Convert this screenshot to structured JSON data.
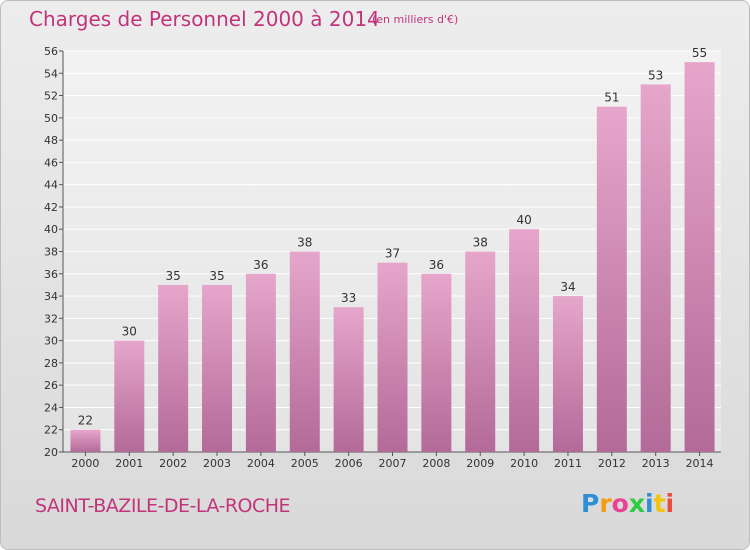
{
  "header": {
    "title": "Charges de Personnel 2000 à 2014",
    "subtitle": "(en milliers d'€)"
  },
  "footer": {
    "commune": "SAINT-BAZILE-DE-LA-ROCHE",
    "logo_letters": [
      {
        "ch": "P",
        "color": "#2f8fd6"
      },
      {
        "ch": "r",
        "color": "#f39c12"
      },
      {
        "ch": "o",
        "color": "#e84393"
      },
      {
        "ch": "x",
        "color": "#2ecc40"
      },
      {
        "ch": "i",
        "color": "#2f8fd6"
      },
      {
        "ch": "t",
        "color": "#f1c40f"
      },
      {
        "ch": "i",
        "color": "#e74c3c"
      }
    ]
  },
  "colors": {
    "bar_top": "#e6a6cb",
    "bar_bottom": "#b36a98",
    "accent": "#c2347a"
  },
  "chart_data": {
    "type": "bar",
    "title": "Charges de Personnel 2000 à 2014",
    "subtitle": "(en milliers d'€)",
    "xlabel": "",
    "ylabel": "",
    "categories": [
      "2000",
      "2001",
      "2002",
      "2003",
      "2004",
      "2005",
      "2006",
      "2007",
      "2008",
      "2009",
      "2010",
      "2011",
      "2012",
      "2013",
      "2014"
    ],
    "values": [
      22,
      30,
      35,
      35,
      36,
      38,
      33,
      37,
      36,
      38,
      40,
      34,
      51,
      53,
      55
    ],
    "ylim": [
      20,
      56
    ],
    "ytick_step": 2,
    "grid": true,
    "legend": "none"
  }
}
